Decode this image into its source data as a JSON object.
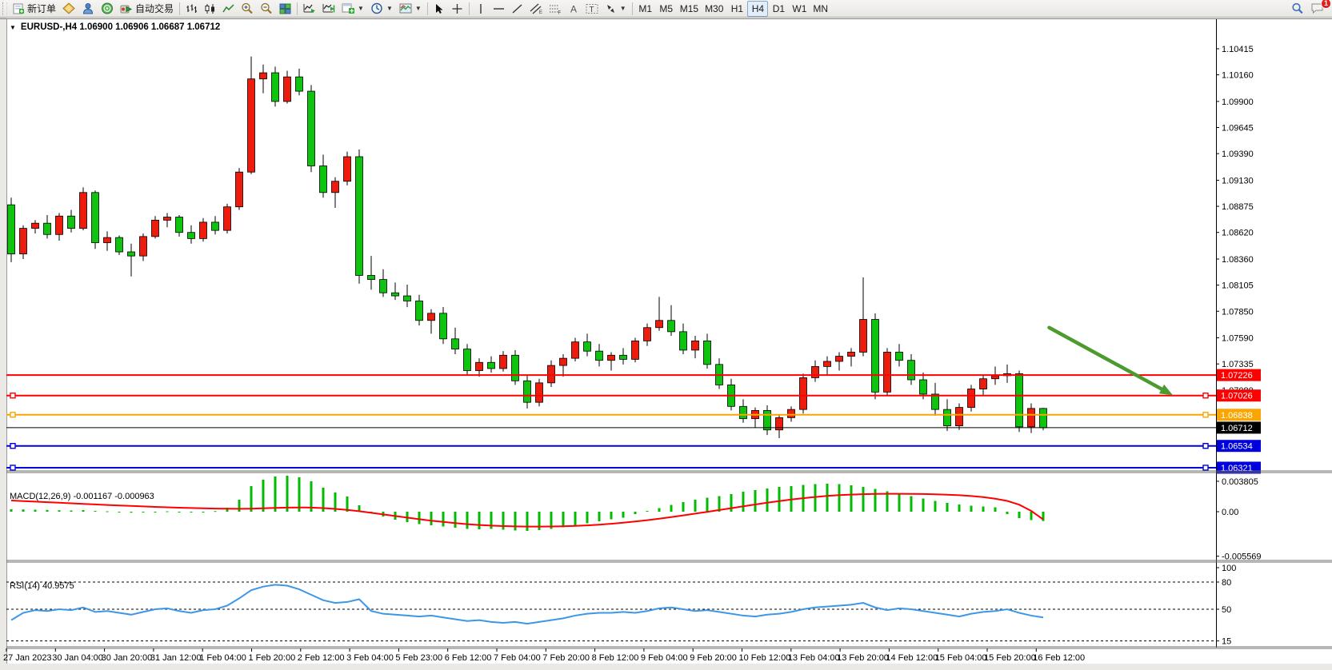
{
  "toolbar": {
    "new_order_label": "新订单",
    "autotrade_label": "自动交易",
    "timeframes": [
      "M1",
      "M5",
      "M15",
      "M30",
      "H1",
      "H4",
      "D1",
      "W1",
      "MN"
    ],
    "active_timeframe": "H4",
    "notification_count": "1"
  },
  "chart": {
    "title": "EURUSD-,H4  1.06900 1.06906 1.06687 1.06712",
    "macd_label": "MACD(12,26,9) -0.001167 -0.000963",
    "rsi_label": "RSI(14) 40.9575"
  },
  "chart_data": {
    "type": "candlestick",
    "symbol": "EURUSD-",
    "timeframe": "H4",
    "current_ohlc": {
      "open": "1.06900",
      "high": "1.06906",
      "low": "1.06687",
      "close": "1.06712"
    },
    "price_axis_ticks": [
      1.10415,
      1.1016,
      1.099,
      1.09645,
      1.0939,
      1.0913,
      1.08875,
      1.0862,
      1.0836,
      1.08105,
      1.0785,
      1.0759,
      1.07335,
      1.0708
    ],
    "time_labels": [
      "27 Jan 2023",
      "30 Jan 04:00",
      "30 Jan 20:00",
      "31 Jan 12:00",
      "1 Feb 04:00",
      "1 Feb 20:00",
      "2 Feb 12:00",
      "3 Feb 04:00",
      "5 Feb 23:00",
      "6 Feb 12:00",
      "7 Feb 04:00",
      "7 Feb 20:00",
      "8 Feb 12:00",
      "9 Feb 04:00",
      "9 Feb 20:00",
      "10 Feb 12:00",
      "13 Feb 04:00",
      "13 Feb 20:00",
      "14 Feb 12:00",
      "15 Feb 04:00",
      "15 Feb 20:00",
      "16 Feb 12:00"
    ],
    "candles": [
      [
        1.0889,
        1.0896,
        1.0833,
        1.0841
      ],
      [
        1.0841,
        1.0869,
        1.0836,
        1.0866
      ],
      [
        1.0866,
        1.0874,
        1.0861,
        1.0871
      ],
      [
        1.0871,
        1.0879,
        1.0856,
        1.086
      ],
      [
        1.086,
        1.0881,
        1.0854,
        1.0878
      ],
      [
        1.0878,
        1.0884,
        1.0862,
        1.0866
      ],
      [
        1.0866,
        1.0906,
        1.0864,
        1.0901
      ],
      [
        1.0901,
        1.0903,
        1.0846,
        1.0852
      ],
      [
        1.0852,
        1.0863,
        1.0844,
        1.0857
      ],
      [
        1.0857,
        1.0859,
        1.084,
        1.0843
      ],
      [
        1.0843,
        1.0851,
        1.0819,
        1.0839
      ],
      [
        1.0839,
        1.0861,
        1.0834,
        1.0858
      ],
      [
        1.0858,
        1.0878,
        1.0856,
        1.0874
      ],
      [
        1.0874,
        1.0881,
        1.0867,
        1.0877
      ],
      [
        1.0877,
        1.0879,
        1.0858,
        1.0862
      ],
      [
        1.0862,
        1.0869,
        1.0851,
        1.0856
      ],
      [
        1.0856,
        1.0876,
        1.0853,
        1.0872
      ],
      [
        1.0872,
        1.0878,
        1.086,
        1.0864
      ],
      [
        1.0864,
        1.089,
        1.0861,
        1.0887
      ],
      [
        1.0887,
        1.0925,
        1.0884,
        1.0921
      ],
      [
        1.0921,
        1.1034,
        1.0919,
        1.1012
      ],
      [
        1.1012,
        1.1026,
        1.0998,
        1.1018
      ],
      [
        1.1018,
        1.1024,
        1.0985,
        1.099
      ],
      [
        1.099,
        1.102,
        1.0988,
        1.1014
      ],
      [
        1.1014,
        1.1022,
        1.0996,
        1.1
      ],
      [
        1.1,
        1.1006,
        1.0921,
        1.0927
      ],
      [
        1.0927,
        1.0938,
        1.0896,
        1.0901
      ],
      [
        1.0901,
        1.0916,
        1.0886,
        1.0912
      ],
      [
        1.0912,
        1.0941,
        1.0908,
        1.0936
      ],
      [
        1.0936,
        1.0943,
        1.0812,
        1.082
      ],
      [
        1.082,
        1.0839,
        1.0806,
        1.0816
      ],
      [
        1.0816,
        1.0826,
        1.0799,
        1.0803
      ],
      [
        1.0803,
        1.0813,
        1.0796,
        1.08
      ],
      [
        1.08,
        1.0811,
        1.0789,
        1.0795
      ],
      [
        1.0795,
        1.0801,
        1.0771,
        1.0776
      ],
      [
        1.0776,
        1.0787,
        1.0763,
        1.0783
      ],
      [
        1.0783,
        1.0789,
        1.0753,
        1.0758
      ],
      [
        1.0758,
        1.0769,
        1.0743,
        1.0748
      ],
      [
        1.0748,
        1.0753,
        1.0723,
        1.0727
      ],
      [
        1.0727,
        1.0739,
        1.0721,
        1.0735
      ],
      [
        1.0735,
        1.0741,
        1.0725,
        1.0729
      ],
      [
        1.0729,
        1.0746,
        1.0726,
        1.0742
      ],
      [
        1.0742,
        1.0747,
        1.0713,
        1.0717
      ],
      [
        1.0717,
        1.0723,
        1.069,
        1.0696
      ],
      [
        1.0696,
        1.0719,
        1.0692,
        1.0715
      ],
      [
        1.0715,
        1.0737,
        1.0711,
        1.0732
      ],
      [
        1.0732,
        1.0743,
        1.0721,
        1.0739
      ],
      [
        1.0739,
        1.0759,
        1.0736,
        1.0755
      ],
      [
        1.0755,
        1.0763,
        1.0741,
        1.0746
      ],
      [
        1.0746,
        1.0753,
        1.0731,
        1.0737
      ],
      [
        1.0737,
        1.0745,
        1.0727,
        1.0742
      ],
      [
        1.0742,
        1.0749,
        1.0733,
        1.0738
      ],
      [
        1.0738,
        1.0759,
        1.0735,
        1.0756
      ],
      [
        1.0756,
        1.0773,
        1.0751,
        1.0769
      ],
      [
        1.0769,
        1.0799,
        1.0766,
        1.0776
      ],
      [
        1.0776,
        1.0791,
        1.0761,
        1.0765
      ],
      [
        1.0765,
        1.0773,
        1.0743,
        1.0747
      ],
      [
        1.0747,
        1.0761,
        1.0739,
        1.0756
      ],
      [
        1.0756,
        1.0763,
        1.0729,
        1.0733
      ],
      [
        1.0733,
        1.0739,
        1.0709,
        1.0713
      ],
      [
        1.0713,
        1.0719,
        1.0688,
        1.0692
      ],
      [
        1.0692,
        1.0699,
        1.0676,
        1.068
      ],
      [
        1.068,
        1.0691,
        1.0671,
        1.0688
      ],
      [
        1.0688,
        1.0693,
        1.0664,
        1.0669
      ],
      [
        1.0669,
        1.0684,
        1.0661,
        1.0681
      ],
      [
        1.0681,
        1.0692,
        1.0677,
        1.0689
      ],
      [
        1.0689,
        1.0724,
        1.0685,
        1.072
      ],
      [
        1.072,
        1.0737,
        1.0716,
        1.0731
      ],
      [
        1.0731,
        1.0741,
        1.0723,
        1.0736
      ],
      [
        1.0736,
        1.0745,
        1.0727,
        1.0741
      ],
      [
        1.0741,
        1.0749,
        1.0731,
        1.0745
      ],
      [
        1.0745,
        1.0818,
        1.0741,
        1.0777
      ],
      [
        1.0777,
        1.0783,
        1.0699,
        1.0706
      ],
      [
        1.0706,
        1.0749,
        1.0702,
        1.0745
      ],
      [
        1.0745,
        1.0753,
        1.0731,
        1.0737
      ],
      [
        1.0737,
        1.0743,
        1.0713,
        1.0718
      ],
      [
        1.0718,
        1.0725,
        1.0699,
        1.0704
      ],
      [
        1.0704,
        1.0715,
        1.0683,
        1.0689
      ],
      [
        1.0689,
        1.0699,
        1.0668,
        1.0673
      ],
      [
        1.0673,
        1.0695,
        1.0669,
        1.0691
      ],
      [
        1.0691,
        1.0713,
        1.0687,
        1.0709
      ],
      [
        1.0709,
        1.0723,
        1.0703,
        1.0719
      ],
      [
        1.0719,
        1.0731,
        1.0713,
        1.0722
      ],
      [
        1.0722,
        1.0733,
        1.0715,
        1.0724
      ],
      [
        1.0724,
        1.0727,
        1.0667,
        1.0672
      ],
      [
        1.0672,
        1.0695,
        1.0666,
        1.069
      ],
      [
        1.069,
        1.06906,
        1.06687,
        1.06712
      ]
    ],
    "hlines": [
      {
        "price": 1.07226,
        "label": "1.07226",
        "color": "#fe0000",
        "width": 2,
        "handles": false
      },
      {
        "price": 1.07026,
        "label": "1.07026",
        "color": "#fe0000",
        "width": 2,
        "handles": true
      },
      {
        "price": 1.06838,
        "label": "1.06838",
        "color": "#f9a602",
        "width": 2,
        "handles": true
      },
      {
        "price": 1.06712,
        "label": "1.06712",
        "color": "#000000",
        "width": 1,
        "handles": false,
        "role": "bid-price-line"
      },
      {
        "price": 1.06534,
        "label": "1.06534",
        "color": "#0000dd",
        "width": 2,
        "handles": true
      },
      {
        "price": 1.06321,
        "label": "1.06321",
        "color": "#0000dd",
        "width": 2,
        "handles": true
      }
    ],
    "trend_arrow": {
      "from": {
        "bar": 86.5,
        "price": 1.0769
      },
      "to": {
        "bar": 96.8,
        "price": 1.0703
      },
      "color": "#4c9b2f"
    },
    "macd": {
      "label": "MACD(12,26,9) -0.001167 -0.000963",
      "params": "12,26,9",
      "macd_value": -0.001167,
      "signal_value": -0.000963,
      "scale_ticks": [
        "0.003805",
        "0.00",
        "-0.005569"
      ],
      "scale_values": [
        0.003805,
        0,
        -0.005569
      ],
      "hist": [
        0.0003,
        0.00028,
        0.00025,
        0.00022,
        0.00018,
        0.00015,
        0.0002,
        0.0001,
        5e-05,
        -5e-05,
        -0.00012,
        -8e-05,
        0,
        5e-05,
        0,
        -5e-05,
        0,
        8e-05,
        0.0005,
        0.0015,
        0.0032,
        0.004,
        0.0044,
        0.0045,
        0.0043,
        0.0038,
        0.003,
        0.0024,
        0.0019,
        0.0008,
        -0.0001,
        -0.0006,
        -0.001,
        -0.0013,
        -0.00155,
        -0.0017,
        -0.00185,
        -0.002,
        -0.00215,
        -0.0022,
        -0.00215,
        -0.00225,
        -0.00235,
        -0.0024,
        -0.0023,
        -0.00215,
        -0.00195,
        -0.0017,
        -0.00145,
        -0.0012,
        -0.00095,
        -0.00075,
        -0.0003,
        0.0001,
        0.00045,
        0.00085,
        0.0012,
        0.0015,
        0.00175,
        0.00195,
        0.0022,
        0.0025,
        0.0027,
        0.0029,
        0.0031,
        0.0032,
        0.00335,
        0.00345,
        0.0035,
        0.00345,
        0.0033,
        0.0031,
        0.00285,
        0.00255,
        0.00225,
        0.00195,
        0.00165,
        0.00135,
        0.0011,
        0.0009,
        0.00075,
        0.00065,
        0.00055,
        -0.0003,
        -0.0008,
        -0.00105,
        -0.001167
      ],
      "signal": [
        0.0014,
        0.00133,
        0.00126,
        0.00119,
        0.00112,
        0.00105,
        0.00098,
        0.00091,
        0.00084,
        0.00078,
        0.00072,
        0.00066,
        0.0006,
        0.00055,
        0.0005,
        0.00046,
        0.00042,
        0.00039,
        0.00037,
        0.00036,
        0.00038,
        0.00042,
        0.00047,
        0.00051,
        0.00053,
        0.00051,
        0.00045,
        0.00035,
        0.00023,
        6e-05,
        -0.00014,
        -0.00034,
        -0.00054,
        -0.00074,
        -0.00094,
        -0.00112,
        -0.00128,
        -0.00143,
        -0.00156,
        -0.00166,
        -0.00174,
        -0.0018,
        -0.00184,
        -0.00186,
        -0.00186,
        -0.00185,
        -0.00182,
        -0.00178,
        -0.00171,
        -0.00162,
        -0.00151,
        -0.00138,
        -0.00123,
        -0.00106,
        -0.00087,
        -0.00067,
        -0.00046,
        -0.00024,
        -2e-05,
        0.00021,
        0.00044,
        0.00067,
        0.0009,
        0.00112,
        0.00133,
        0.00152,
        0.00169,
        0.00184,
        0.00197,
        0.00207,
        0.00214,
        0.00219,
        0.00222,
        0.00224,
        0.00224,
        0.00223,
        0.00221,
        0.00218,
        0.00213,
        0.00206,
        0.00196,
        0.00182,
        0.00162,
        0.00135,
        0.00088,
        0.0001,
        -0.000963
      ]
    },
    "rsi": {
      "label": "RSI(14) 40.9575",
      "period": 14,
      "value": 40.9575,
      "scale_ticks": [
        "100",
        "80",
        "50",
        "15"
      ],
      "levels": [
        80,
        50,
        15
      ],
      "values": [
        38,
        46,
        49,
        48,
        50,
        49,
        52,
        47,
        48,
        46,
        44,
        47,
        50,
        51,
        48,
        46,
        49,
        50,
        54,
        62,
        71,
        75,
        77,
        76,
        72,
        66,
        60,
        57,
        58,
        61,
        48,
        45,
        44,
        43,
        42,
        43,
        41,
        39,
        37,
        38,
        36,
        35,
        36,
        34,
        36,
        38,
        40,
        43,
        45,
        46,
        46,
        47,
        46,
        48,
        51,
        52,
        50,
        48,
        49,
        47,
        45,
        43,
        42,
        44,
        45,
        47,
        50,
        52,
        53,
        54,
        55,
        57,
        52,
        49,
        51,
        50,
        48,
        46,
        44,
        42,
        45,
        47,
        48,
        50,
        46,
        43,
        40.96
      ]
    },
    "colors": {
      "bull": "#ee1c0c",
      "bear": "#0fc40f",
      "wick": "#000000",
      "macd_hist": "#00bb00",
      "macd_signal": "#fe0000",
      "rsi_line": "#3d96e8",
      "axis_text": "#000000"
    }
  }
}
